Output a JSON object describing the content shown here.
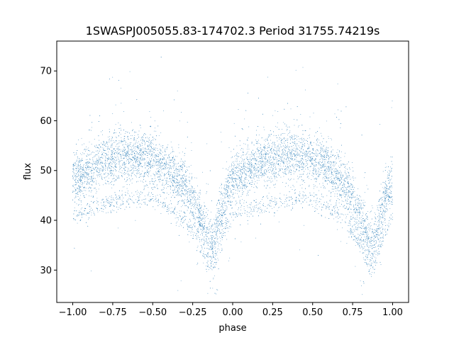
{
  "chart_data": {
    "type": "scatter",
    "title": "1SWASPJ005055.83-174702.3 Period 31755.74219s",
    "xlabel": "phase",
    "ylabel": "flux",
    "xlim": [
      -1.1,
      1.1
    ],
    "ylim": [
      23.5,
      76
    ],
    "xticks": [
      -1.0,
      -0.75,
      -0.5,
      -0.25,
      0.0,
      0.25,
      0.5,
      0.75,
      1.0
    ],
    "xtick_labels": [
      "−1.00",
      "−0.75",
      "−0.50",
      "−0.25",
      "0.00",
      "0.25",
      "0.50",
      "0.75",
      "1.00"
    ],
    "yticks": [
      30,
      40,
      50,
      60,
      70
    ],
    "ytick_labels": [
      "30",
      "40",
      "50",
      "60",
      "70"
    ],
    "grid": false,
    "legend": "none",
    "color": "#1f77b4",
    "series": [
      {
        "x": [
          -1.0,
          -0.9,
          -0.8,
          -0.7,
          -0.6,
          -0.5,
          -0.4,
          -0.3,
          -0.2,
          -0.15,
          -0.12,
          -0.1,
          -0.05,
          0.0,
          0.1,
          0.2,
          0.3,
          0.4,
          0.5,
          0.6,
          0.7,
          0.8,
          0.85,
          0.88,
          0.9,
          0.95,
          1.0
        ],
        "y": [
          48,
          50,
          52,
          53,
          53,
          52,
          50,
          47,
          40,
          36,
          35,
          38,
          44,
          48,
          50,
          52,
          53,
          53,
          52,
          50,
          47,
          40,
          36,
          35,
          38,
          44,
          48
        ]
      },
      {
        "x": [
          -1.0,
          -0.9,
          -0.8,
          -0.7,
          -0.6,
          -0.5,
          -0.4,
          -0.3,
          -0.2,
          -0.15,
          -0.12,
          -0.1,
          -0.05,
          0.0,
          0.1,
          0.2,
          0.3,
          0.4,
          0.5,
          0.6,
          0.7,
          0.8,
          0.85,
          0.88,
          0.9,
          0.95,
          1.0
        ],
        "y": [
          41,
          42,
          43,
          44,
          44.5,
          44,
          42.5,
          40,
          35,
          31,
          30,
          33,
          38,
          41,
          42,
          43,
          44,
          44.5,
          44,
          42.5,
          40,
          35,
          31,
          30,
          33,
          38,
          41
        ]
      }
    ]
  }
}
